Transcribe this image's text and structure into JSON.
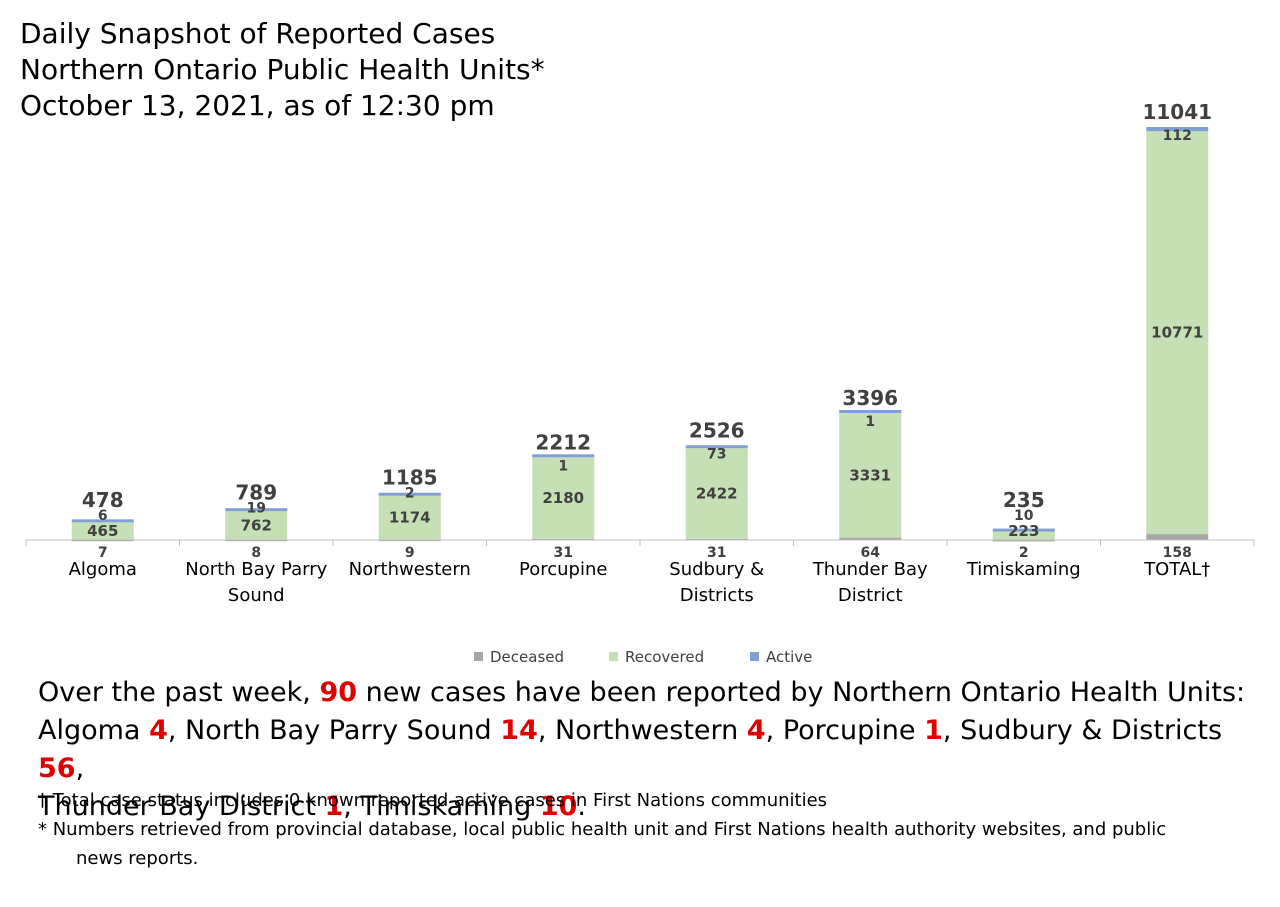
{
  "title": {
    "line1": "Daily Snapshot of Reported Cases",
    "line2": "Northern Ontario Public Health Units*",
    "line3": "October 13, 2021, as of 12:30 pm"
  },
  "colors": {
    "deceased": "#a6a6a6",
    "recovered": "#c5e0b4",
    "active": "#7f9fd5",
    "highlight": "#e00000"
  },
  "chart_data": {
    "type": "bar",
    "stacked": true,
    "categories": [
      [
        "Algoma"
      ],
      [
        "North Bay Parry",
        "Sound"
      ],
      [
        "Northwestern"
      ],
      [
        "Porcupine"
      ],
      [
        "Sudbury &",
        "Districts"
      ],
      [
        "Thunder Bay",
        "District"
      ],
      [
        "Timiskaming"
      ],
      [
        "TOTAL†"
      ]
    ],
    "series": [
      {
        "name": "Deceased",
        "values": [
          7,
          8,
          9,
          31,
          31,
          64,
          2,
          158
        ]
      },
      {
        "name": "Recovered",
        "values": [
          465,
          762,
          1174,
          2180,
          2422,
          3331,
          223,
          10771
        ]
      },
      {
        "name": "Active",
        "values": [
          6,
          19,
          2,
          1,
          73,
          1,
          10,
          112
        ]
      }
    ],
    "totals": [
      478,
      789,
      1185,
      2212,
      2526,
      3396,
      235,
      11041
    ],
    "legend_position": "bottom",
    "grid": false,
    "ylim": [
      0,
      11041
    ]
  },
  "summary": {
    "p1": "Over the past week, ",
    "total_new": "90",
    "p2": " new cases have been reported by Northern Ontario Health Units:",
    "items": [
      {
        "name": "Algoma",
        "count": "4",
        "sep": ", "
      },
      {
        "name": "North Bay Parry Sound",
        "count": "14",
        "sep": ", "
      },
      {
        "name": "Northwestern",
        "count": "4",
        "sep": ", "
      },
      {
        "name": "Porcupine",
        "count": "1",
        "sep": ", "
      },
      {
        "name": "Sudbury & Districts",
        "count": "56",
        "sep": ","
      },
      {
        "name": "Thunder Bay District",
        "count": "1",
        "sep": ", "
      },
      {
        "name": "Timiskaming",
        "count": "10",
        "sep": "."
      }
    ]
  },
  "notes": {
    "dagger": "† Total case status includes 0 known reported active cases in First Nations communities",
    "star_line1": "* Numbers retrieved from provincial database, local public health unit and First Nations health authority websites, and public",
    "star_line2": "news reports."
  }
}
